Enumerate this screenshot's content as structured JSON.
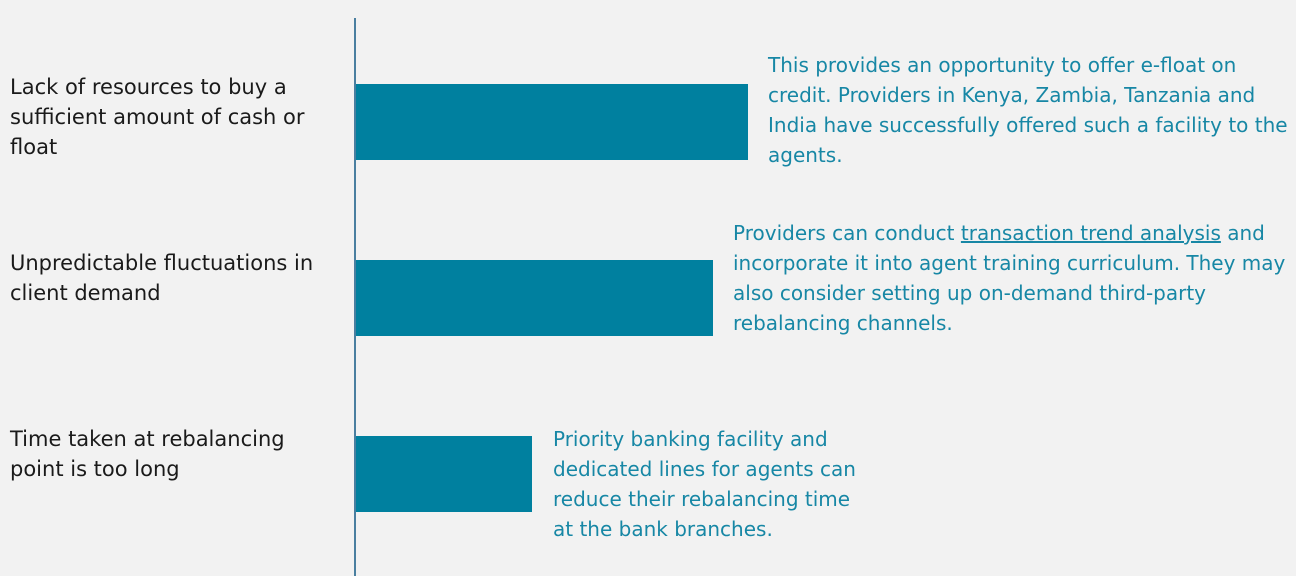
{
  "chart_data": {
    "type": "bar",
    "orientation": "horizontal",
    "categories": [
      "Lack of resources to buy a sufficient amount of cash or float",
      "Unpredictable fluctuations in client demand",
      "Time taken at rebalancing point is too long"
    ],
    "values": [
      100,
      91,
      45
    ],
    "xlim": [
      0,
      100
    ],
    "color": "#00809f",
    "annotations": [
      {
        "text": "This provides an opportunity to offer e-float on credit. Providers in Kenya, Zambia, Tanzania and India have successfully offered such a facility to the agents."
      },
      {
        "text_before": "Providers can conduct",
        "link": "transaction trend analysis",
        "text_after": "and incorporate it into agent training curriculum. They may also consider setting up on-demand third-party rebalancing channels."
      },
      {
        "text": "Priority banking facility and dedicated lines for agents can reduce their rebalancing time at the bank branches."
      }
    ]
  }
}
